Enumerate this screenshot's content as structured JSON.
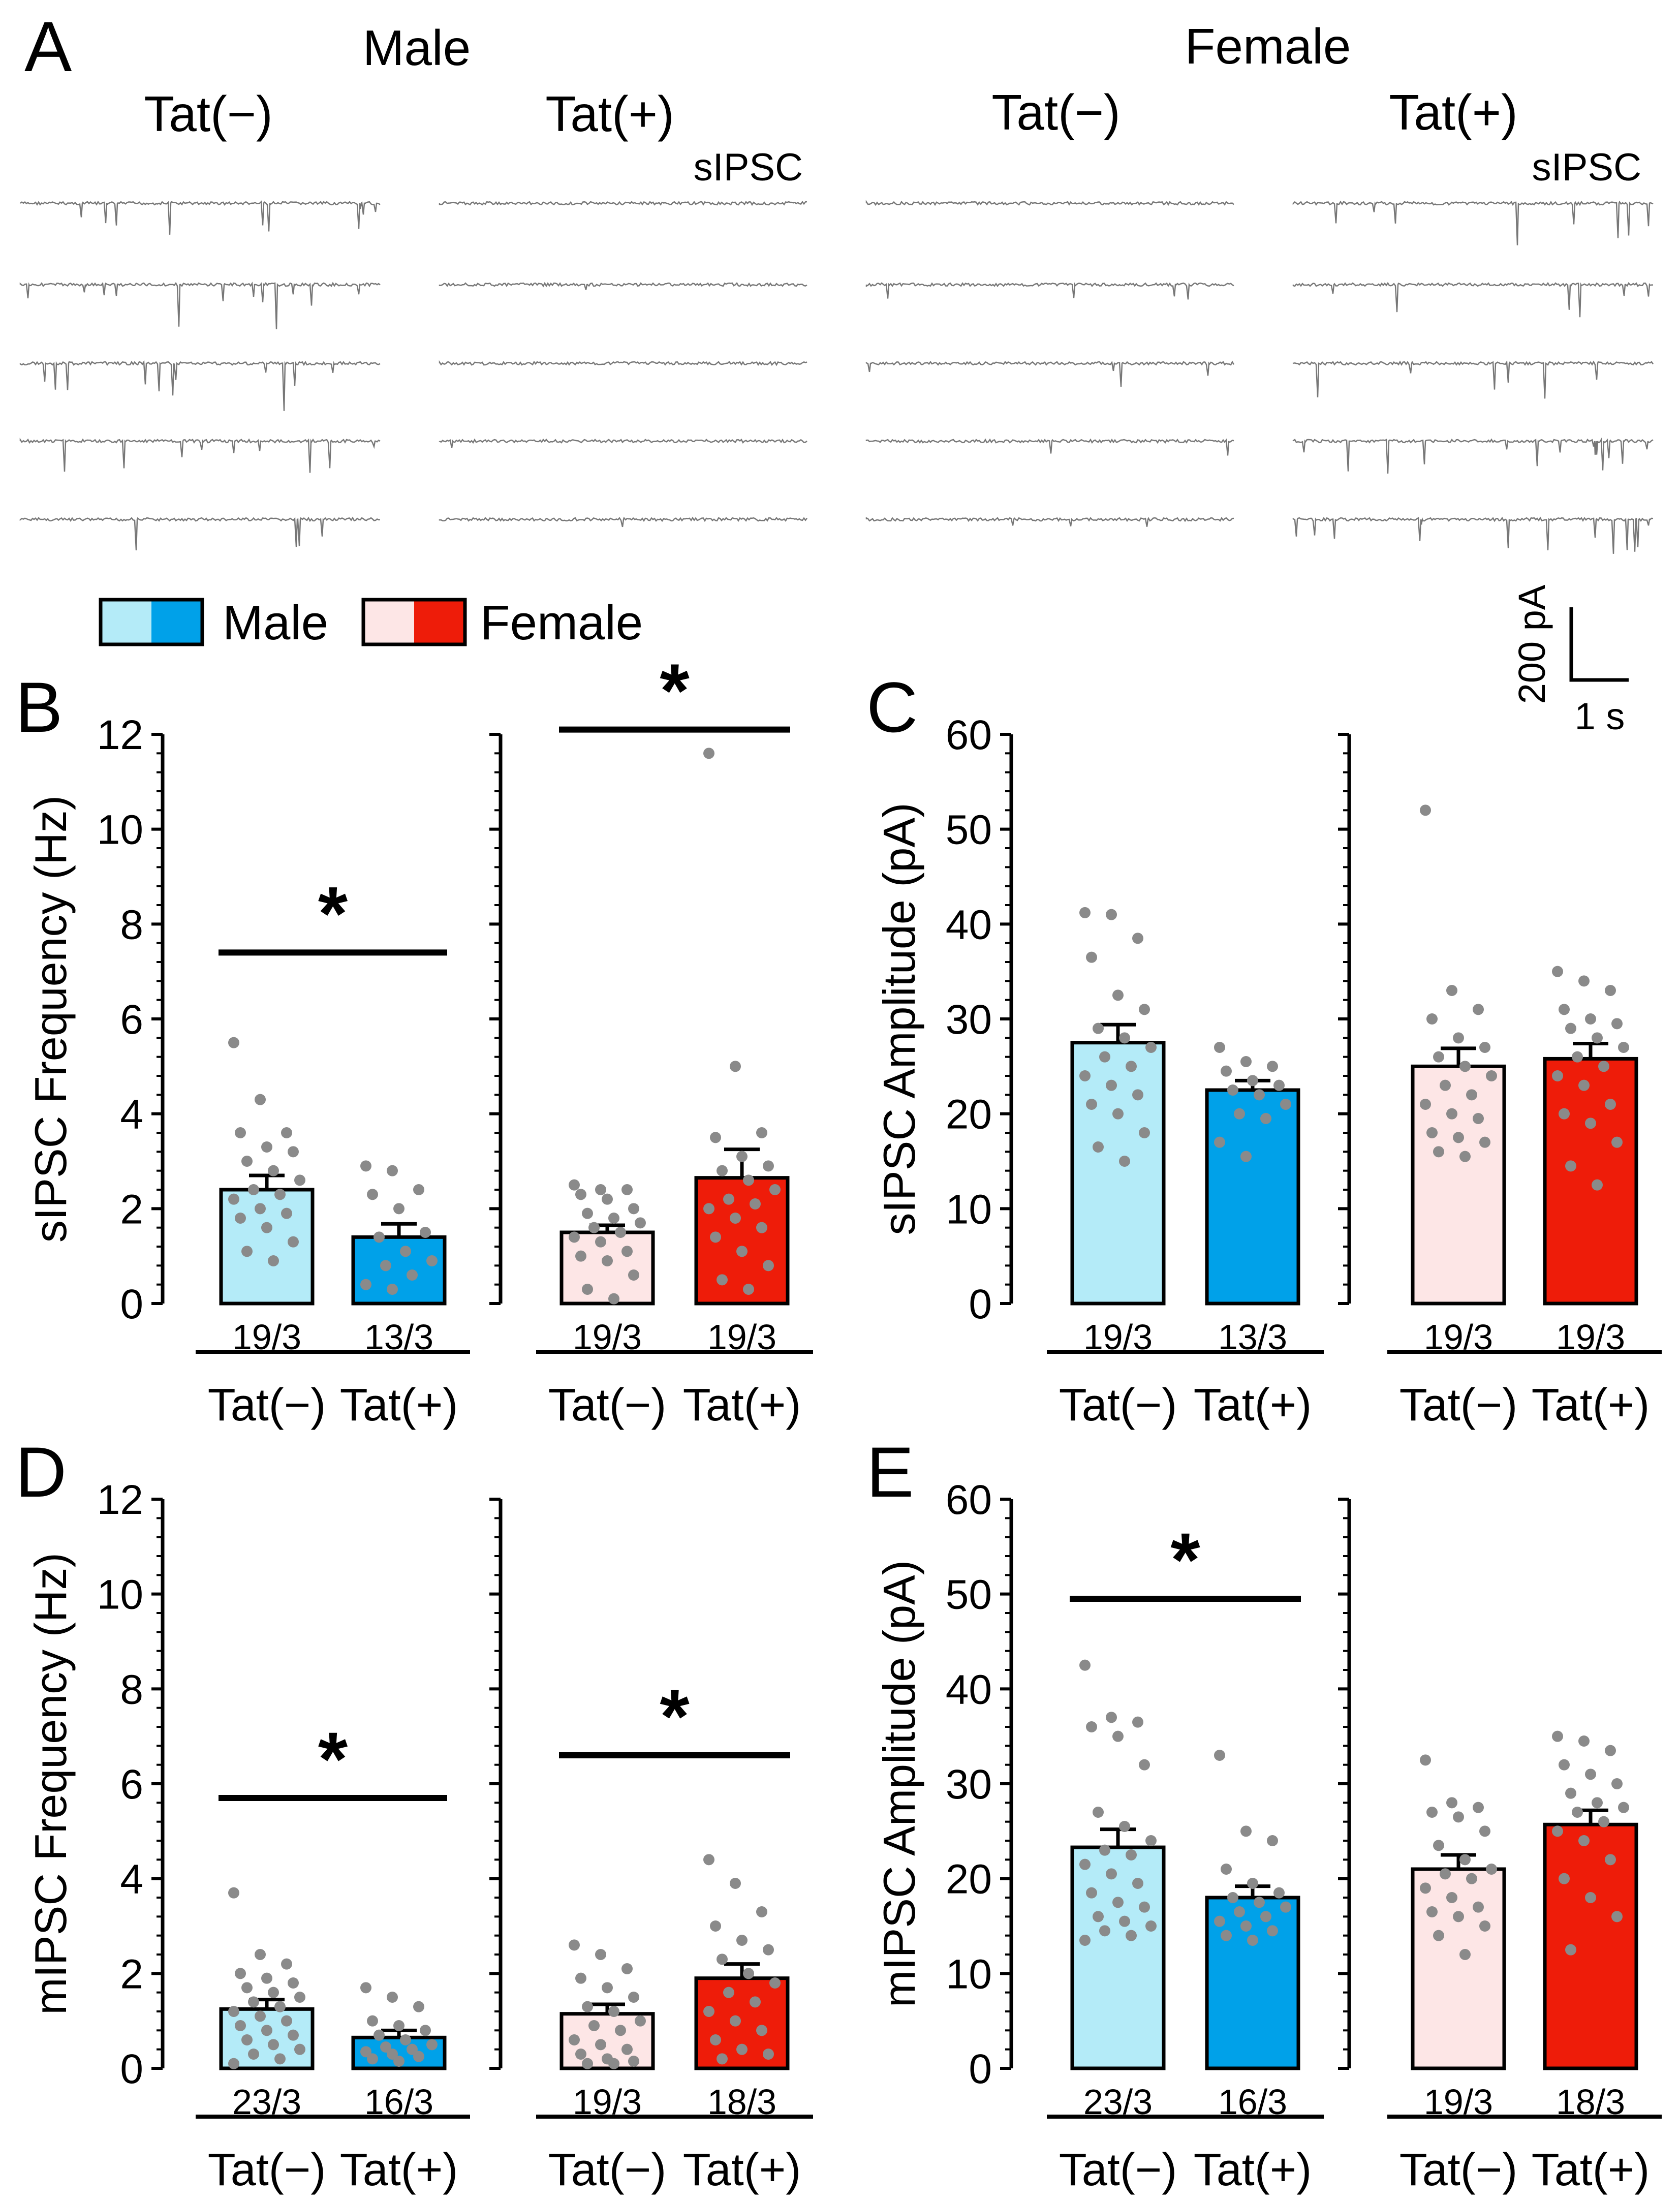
{
  "colors": {
    "male_ctrl": "#b4ebf8",
    "male_tat": "#00a1e9",
    "female_ctrl": "#fde6e6",
    "female_tat": "#ee1c09",
    "dots": "#8a8a8a",
    "trace": "#777777"
  },
  "panel_a": {
    "letter": "A",
    "male_label": "Male",
    "female_label": "Female",
    "tat_minus": "Tat(−)",
    "tat_plus": "Tat(+)",
    "trace_label": "sIPSC",
    "scale_y": "200 pA",
    "scale_x": "1 s",
    "rows_per_group": 5,
    "event_density": [
      0.9,
      0.1,
      0.35,
      1.0
    ]
  },
  "legend": {
    "items": [
      {
        "label": "Male",
        "ctrl_color": "#b4ebf8",
        "tat_color": "#00a1e9"
      },
      {
        "label": "Female",
        "ctrl_color": "#fde6e6",
        "tat_color": "#ee1c09"
      }
    ]
  },
  "chart_data": [
    {
      "type": "bar",
      "panel": "B",
      "ylabel": "sIPSC Frequency (Hz)",
      "ylim": [
        0,
        12
      ],
      "yticks": [
        0,
        2,
        4,
        6,
        8,
        10,
        12
      ],
      "groups": [
        {
          "name": "Male",
          "categories": [
            "Tat(−)",
            "Tat(+)"
          ],
          "values": [
            2.4,
            1.4
          ],
          "sem": [
            0.3,
            0.28
          ],
          "n": [
            "19/3",
            "13/3"
          ],
          "significant": true,
          "sig_label": "*",
          "sig_y": 7.4,
          "points": [
            [
              5.5,
              4.3,
              3.6,
              3.6,
              3.3,
              3.2,
              3.0,
              2.8,
              2.6,
              2.4,
              2.3,
              2.2,
              2.0,
              1.9,
              1.8,
              1.6,
              1.3,
              1.1,
              0.9
            ],
            [
              2.9,
              2.8,
              2.4,
              2.3,
              2.0,
              1.5,
              1.4,
              1.1,
              0.9,
              0.8,
              0.6,
              0.4,
              0.3
            ]
          ]
        },
        {
          "name": "Female",
          "categories": [
            "Tat(−)",
            "Tat(+)"
          ],
          "values": [
            1.5,
            2.65
          ],
          "sem": [
            0.15,
            0.6
          ],
          "n": [
            "19/3",
            "19/3"
          ],
          "significant": true,
          "sig_label": "*",
          "sig_y": 12.1,
          "points": [
            [
              2.5,
              2.4,
              2.4,
              2.3,
              2.2,
              2.0,
              1.9,
              1.8,
              1.7,
              1.6,
              1.5,
              1.4,
              1.3,
              1.1,
              1.0,
              0.9,
              0.6,
              0.3,
              0.1
            ],
            [
              11.6,
              5.0,
              3.6,
              3.5,
              3.1,
              2.9,
              2.8,
              2.6,
              2.4,
              2.2,
              2.1,
              2.0,
              1.8,
              1.6,
              1.4,
              1.1,
              0.8,
              0.5,
              0.3
            ]
          ]
        }
      ],
      "xlabels": [
        "Tat(−)",
        "Tat(+)"
      ]
    },
    {
      "type": "bar",
      "panel": "C",
      "ylabel": "sIPSC Amplitude (pA)",
      "ylim": [
        0,
        60
      ],
      "yticks": [
        0,
        10,
        20,
        30,
        40,
        50,
        60
      ],
      "groups": [
        {
          "name": "Male",
          "categories": [
            "Tat(−)",
            "Tat(+)"
          ],
          "values": [
            27.5,
            22.5
          ],
          "sem": [
            1.9,
            1.0
          ],
          "n": [
            "19/3",
            "13/3"
          ],
          "significant": false,
          "sig_label": "",
          "sig_y": 0,
          "points": [
            [
              41.2,
              41.0,
              38.5,
              36.5,
              32.5,
              31.0,
              29.0,
              28.0,
              27.0,
              26.0,
              25.0,
              24.0,
              23.0,
              22.0,
              21.0,
              20.0,
              18.0,
              16.5,
              15.0
            ],
            [
              27.0,
              25.5,
              25.0,
              24.5,
              23.5,
              23.0,
              22.5,
              22.0,
              21.0,
              20.0,
              19.5,
              17.0,
              15.5
            ]
          ]
        },
        {
          "name": "Female",
          "categories": [
            "Tat(−)",
            "Tat(+)"
          ],
          "values": [
            25.0,
            25.8
          ],
          "sem": [
            1.9,
            1.6
          ],
          "n": [
            "19/3",
            "19/3"
          ],
          "significant": false,
          "sig_label": "",
          "sig_y": 0,
          "points": [
            [
              52.0,
              33.0,
              31.0,
              30.0,
              28.0,
              27.0,
              26.0,
              25.0,
              24.0,
              23.0,
              22.0,
              21.0,
              20.0,
              19.5,
              18.0,
              17.5,
              17.0,
              16.0,
              15.5
            ],
            [
              35.0,
              34.0,
              33.0,
              31.0,
              30.0,
              29.5,
              29.0,
              28.0,
              27.0,
              26.0,
              25.0,
              24.0,
              23.0,
              21.0,
              20.0,
              19.0,
              17.0,
              14.5,
              12.5
            ]
          ]
        }
      ],
      "xlabels": [
        "Tat(−)",
        "Tat(+)"
      ]
    },
    {
      "type": "bar",
      "panel": "D",
      "ylabel": "mIPSC Frequency (Hz)",
      "ylim": [
        0,
        12
      ],
      "yticks": [
        0,
        2,
        4,
        6,
        8,
        10,
        12
      ],
      "groups": [
        {
          "name": "Male",
          "categories": [
            "Tat(−)",
            "Tat(+)"
          ],
          "values": [
            1.25,
            0.65
          ],
          "sem": [
            0.2,
            0.15
          ],
          "n": [
            "23/3",
            "16/3"
          ],
          "significant": true,
          "sig_label": "*",
          "sig_y": 5.7,
          "points": [
            [
              3.7,
              2.4,
              2.2,
              2.0,
              1.9,
              1.8,
              1.7,
              1.6,
              1.5,
              1.4,
              1.3,
              1.2,
              1.1,
              1.0,
              0.9,
              0.8,
              0.7,
              0.6,
              0.5,
              0.4,
              0.3,
              0.2,
              0.1
            ],
            [
              1.7,
              1.5,
              1.3,
              1.0,
              0.9,
              0.8,
              0.7,
              0.6,
              0.5,
              0.45,
              0.4,
              0.35,
              0.3,
              0.25,
              0.2,
              0.15
            ]
          ]
        },
        {
          "name": "Female",
          "categories": [
            "Tat(−)",
            "Tat(+)"
          ],
          "values": [
            1.15,
            1.9
          ],
          "sem": [
            0.2,
            0.3
          ],
          "n": [
            "19/3",
            "18/3"
          ],
          "significant": true,
          "sig_label": "*",
          "sig_y": 6.6,
          "points": [
            [
              2.6,
              2.4,
              2.1,
              1.9,
              1.7,
              1.5,
              1.3,
              1.2,
              1.0,
              0.9,
              0.8,
              0.6,
              0.5,
              0.4,
              0.3,
              0.2,
              0.15,
              0.1,
              0.1
            ],
            [
              4.4,
              3.9,
              3.3,
              3.0,
              2.7,
              2.5,
              2.3,
              2.0,
              1.8,
              1.6,
              1.4,
              1.2,
              1.0,
              0.8,
              0.6,
              0.4,
              0.3,
              0.2
            ]
          ]
        }
      ],
      "xlabels": [
        "Tat(−)",
        "Tat(+)"
      ]
    },
    {
      "type": "bar",
      "panel": "E",
      "ylabel": "mIPSC Amplitude (pA)",
      "ylim": [
        0,
        60
      ],
      "yticks": [
        0,
        10,
        20,
        30,
        40,
        50,
        60
      ],
      "groups": [
        {
          "name": "Male",
          "categories": [
            "Tat(−)",
            "Tat(+)"
          ],
          "values": [
            23.3,
            18.0
          ],
          "sem": [
            1.9,
            1.2
          ],
          "n": [
            "23/3",
            "16/3"
          ],
          "significant": true,
          "sig_label": "*",
          "sig_y": 49.5,
          "points": [
            [
              42.5,
              37.0,
              36.5,
              36.0,
              35.0,
              32.0,
              27.0,
              25.5,
              24.0,
              23.0,
              22.5,
              21.5,
              20.5,
              19.5,
              18.5,
              17.5,
              17.0,
              16.0,
              15.5,
              15.0,
              14.5,
              14.0,
              13.5
            ],
            [
              33.0,
              25.0,
              24.0,
              21.0,
              19.5,
              18.5,
              18.0,
              17.5,
              17.0,
              16.5,
              16.0,
              15.5,
              15.0,
              14.5,
              14.0,
              13.5
            ]
          ]
        },
        {
          "name": "Female",
          "categories": [
            "Tat(−)",
            "Tat(+)"
          ],
          "values": [
            21.0,
            25.7
          ],
          "sem": [
            1.5,
            1.5
          ],
          "n": [
            "19/3",
            "18/3"
          ],
          "significant": false,
          "sig_label": "",
          "sig_y": 0,
          "points": [
            [
              32.5,
              28.0,
              27.5,
              27.0,
              26.5,
              25.0,
              23.5,
              22.0,
              21.0,
              20.5,
              20.0,
              19.0,
              18.0,
              17.0,
              16.5,
              16.0,
              15.0,
              14.0,
              12.0
            ],
            [
              35.0,
              34.5,
              33.5,
              32.0,
              31.0,
              30.0,
              29.0,
              28.0,
              27.5,
              27.0,
              26.0,
              25.0,
              24.0,
              22.0,
              20.0,
              18.0,
              16.0,
              12.5
            ]
          ]
        }
      ],
      "xlabels": [
        "Tat(−)",
        "Tat(+)"
      ]
    }
  ]
}
